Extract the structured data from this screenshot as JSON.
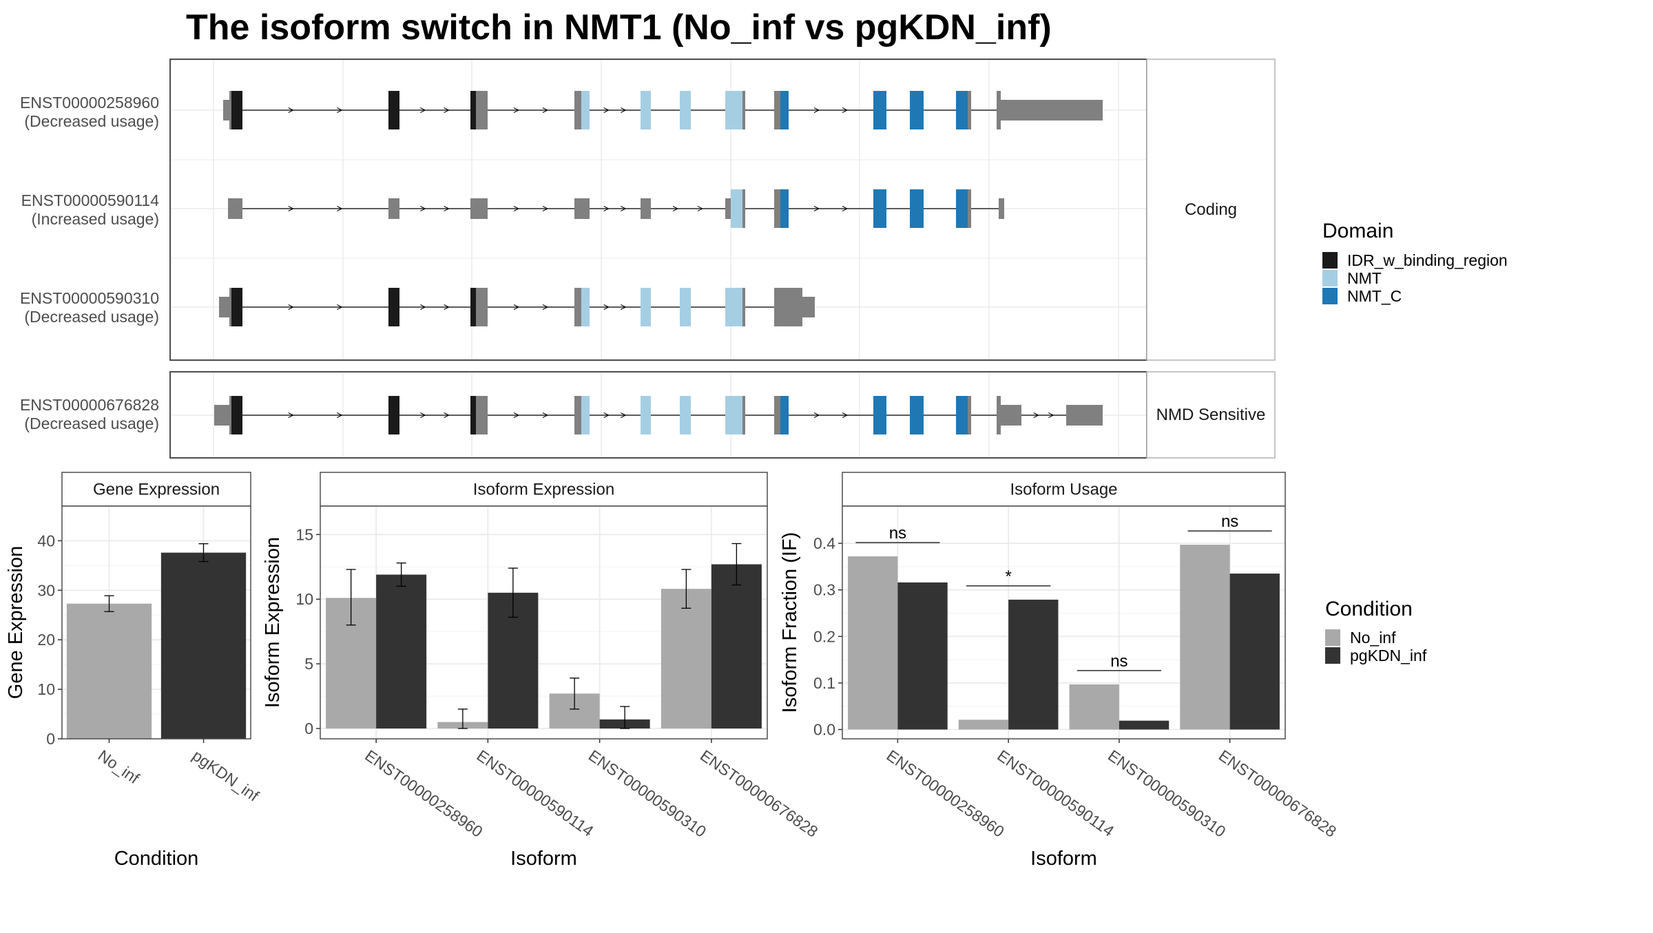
{
  "colors": {
    "utr": "#808080",
    "idr": "#1a1a1a",
    "nmt": "#a6cee3",
    "nmt_c": "#1f78b4",
    "no_inf": "#a9a9a9",
    "pgkdn_inf": "#333333",
    "panel_border": "#4d4d4d",
    "grid": "#ebebeb"
  },
  "chart_data": [
    {
      "type": "gene_structure",
      "title": "The isoform switch in NMT1 (No_inf vs pgKDN_inf)",
      "groups": [
        {
          "label": "Coding",
          "isoforms": [
            "ENST00000258960",
            "ENST00000590114",
            "ENST00000590310"
          ]
        },
        {
          "label": "NMD Sensitive",
          "isoforms": [
            "ENST00000676828"
          ]
        }
      ],
      "isoforms": [
        {
          "id": "ENST00000258960",
          "usage": "(Decreased usage)"
        },
        {
          "id": "ENST00000590114",
          "usage": "(Increased usage)"
        },
        {
          "id": "ENST00000590310",
          "usage": "(Decreased usage)"
        },
        {
          "id": "ENST00000676828",
          "usage": "(Decreased usage)"
        }
      ],
      "legend": {
        "title": "Domain",
        "entries": [
          {
            "name": "IDR_w_binding_region",
            "color": "#1a1a1a"
          },
          {
            "name": "NMT",
            "color": "#a6cee3"
          },
          {
            "name": "NMT_C",
            "color": "#1f78b4"
          }
        ]
      }
    },
    {
      "type": "bar",
      "strip": "Gene Expression",
      "xlabel": "Condition",
      "ylabel": "Gene Expression",
      "categories": [
        "No_inf",
        "pgKDN_inf"
      ],
      "values": [
        27.3,
        37.6
      ],
      "errors": [
        [
          25.7,
          28.9
        ],
        [
          35.8,
          39.4
        ]
      ],
      "ylim": [
        0,
        47
      ],
      "yticks": [
        0,
        10,
        20,
        30,
        40
      ]
    },
    {
      "type": "bar",
      "strip": "Isoform Expression",
      "xlabel": "Isoform",
      "ylabel": "Isoform Expression",
      "categories": [
        "ENST00000258960",
        "ENST00000590114",
        "ENST00000590310",
        "ENST00000676828"
      ],
      "series": [
        {
          "name": "No_inf",
          "values": [
            10.1,
            0.5,
            2.7,
            10.8
          ],
          "errors": [
            [
              8.0,
              12.3
            ],
            [
              0.0,
              1.5
            ],
            [
              1.5,
              3.9
            ],
            [
              9.3,
              12.3
            ]
          ]
        },
        {
          "name": "pgKDN_inf",
          "values": [
            11.9,
            10.5,
            0.7,
            12.7
          ],
          "errors": [
            [
              11.0,
              12.8
            ],
            [
              8.6,
              12.4
            ],
            [
              0.0,
              1.7
            ],
            [
              11.1,
              14.3
            ]
          ]
        }
      ],
      "ylim": [
        -0.8,
        17.2
      ],
      "yticks": [
        0,
        5,
        10,
        15
      ]
    },
    {
      "type": "bar",
      "strip": "Isoform Usage",
      "xlabel": "Isoform",
      "ylabel": "Isoform Fraction (IF)",
      "categories": [
        "ENST00000258960",
        "ENST00000590114",
        "ENST00000590310",
        "ENST00000676828"
      ],
      "series": [
        {
          "name": "No_inf",
          "values": [
            0.372,
            0.021,
            0.097,
            0.397
          ]
        },
        {
          "name": "pgKDN_inf",
          "values": [
            0.316,
            0.279,
            0.019,
            0.335
          ]
        }
      ],
      "significance": [
        "ns",
        "*",
        "ns",
        "ns"
      ],
      "ylim": [
        -0.02,
        0.48
      ],
      "yticks": [
        "0.0",
        "0.1",
        "0.2",
        "0.3",
        "0.4"
      ]
    }
  ],
  "condition_legend": {
    "title": "Condition",
    "entries": [
      {
        "name": "No_inf",
        "color": "#a9a9a9"
      },
      {
        "name": "pgKDN_inf",
        "color": "#333333"
      }
    ]
  }
}
